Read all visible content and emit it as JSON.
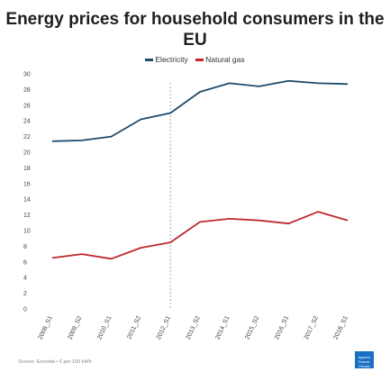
{
  "chart_data": {
    "type": "line",
    "title": "Energy prices for household consumers in the EU",
    "categories": [
      "2008_S1",
      "2009_S2",
      "2010_S1",
      "2011_S2",
      "2012_S1",
      "2013_S2",
      "2014_S1",
      "2015_S2",
      "2016_S1",
      "2017_S2",
      "2018_S1"
    ],
    "series": [
      {
        "name": "Electricity",
        "color": "#1d4a6b",
        "values": [
          21.4,
          21.5,
          22.0,
          24.2,
          25.0,
          27.7,
          28.8,
          28.4,
          29.1,
          28.8,
          28.7
        ]
      },
      {
        "name": "Natural gas",
        "color": "#c0272d",
        "values": [
          6.5,
          7.0,
          6.4,
          7.8,
          8.5,
          11.1,
          11.5,
          11.3,
          10.9,
          12.4,
          11.3
        ]
      }
    ],
    "y_ticks": [
      "0",
      "2",
      "4",
      "6",
      "8",
      "10",
      "12",
      "14",
      "16",
      "18",
      "20",
      "22",
      "24",
      "26",
      "28",
      "30"
    ],
    "ylim": [
      0,
      30
    ],
    "grid": false,
    "legend_position": "top-center",
    "annotation": "vertical-dashed-line-at-2012_S1"
  },
  "source": "Source: Eurostat • € per 100 kWh",
  "logo_text": "Agence France-Presse"
}
